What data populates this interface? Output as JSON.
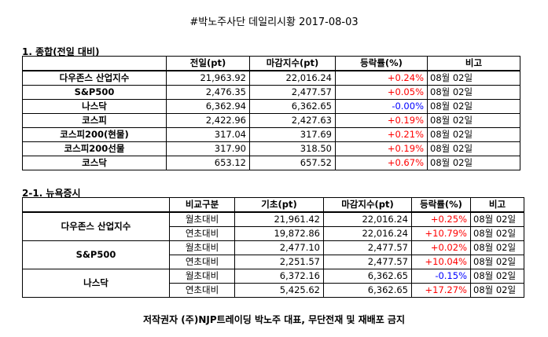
{
  "title": "#박노주사단 데일리시황 2017-08-03",
  "section1": {
    "heading": "1. 종합(전일 대비)",
    "headers": [
      "",
      "전일(pt)",
      "마감지수(pt)",
      "등락률(%)",
      "비고"
    ],
    "rows": [
      {
        "name": "다우존스 산업지수",
        "prev": "21,963.92",
        "close": "22,016.24",
        "change": "+0.24%",
        "note": "08월 02일"
      },
      {
        "name": "S&P500",
        "prev": "2,476.35",
        "close": "2,477.57",
        "change": "+0.05%",
        "note": "08월 02일"
      },
      {
        "name": "나스닥",
        "prev": "6,362.94",
        "close": "6,362.65",
        "change": "-0.00%",
        "note": "08월 02일"
      },
      {
        "name": "코스피",
        "prev": "2,422.96",
        "close": "2,427.63",
        "change": "+0.19%",
        "note": "08월 02일"
      },
      {
        "name": "코스피200(현물)",
        "prev": "317.04",
        "close": "317.69",
        "change": "+0.21%",
        "note": "08월 02일"
      },
      {
        "name": "코스피200선물",
        "prev": "317.90",
        "close": "318.50",
        "change": "+0.19%",
        "note": "08월 02일"
      },
      {
        "name": "코스닥",
        "prev": "653.12",
        "close": "657.52",
        "change": "+0.67%",
        "note": "08월 02일"
      }
    ]
  },
  "section2": {
    "heading": "2-1. 뉴욕증시",
    "headers": [
      "",
      "비교구분",
      "기초(pt)",
      "마감지수(pt)",
      "등락률(%)",
      "비고"
    ],
    "groups": [
      {
        "name": "다우존스 산업지수",
        "rows": [
          {
            "type": "월초대비",
            "base": "21,961.42",
            "close": "22,016.24",
            "change": "+0.25%",
            "note": "08월 02일"
          },
          {
            "type": "연초대비",
            "base": "19,872.86",
            "close": "22,016.24",
            "change": "+10.79%",
            "note": "08월 02일"
          }
        ]
      },
      {
        "name": "S&P500",
        "rows": [
          {
            "type": "월초대비",
            "base": "2,477.10",
            "close": "2,477.57",
            "change": "+0.02%",
            "note": "08월 02일"
          },
          {
            "type": "연초대비",
            "base": "2,251.57",
            "close": "2,477.57",
            "change": "+10.04%",
            "note": "08월 02일"
          }
        ]
      },
      {
        "name": "나스닥",
        "rows": [
          {
            "type": "월초대비",
            "base": "6,372.16",
            "close": "6,362.65",
            "change": "-0.15%",
            "note": "08월 02일"
          },
          {
            "type": "연초대비",
            "base": "5,425.62",
            "close": "6,362.65",
            "change": "+17.27%",
            "note": "08월 02일"
          }
        ]
      }
    ]
  },
  "footer": "저작권자 (주)NJP트레이딩 박노주 대표, 무단전재 및 재배포 금지",
  "colors": {
    "positive": "#ff0000",
    "negative": "#0000ff"
  }
}
